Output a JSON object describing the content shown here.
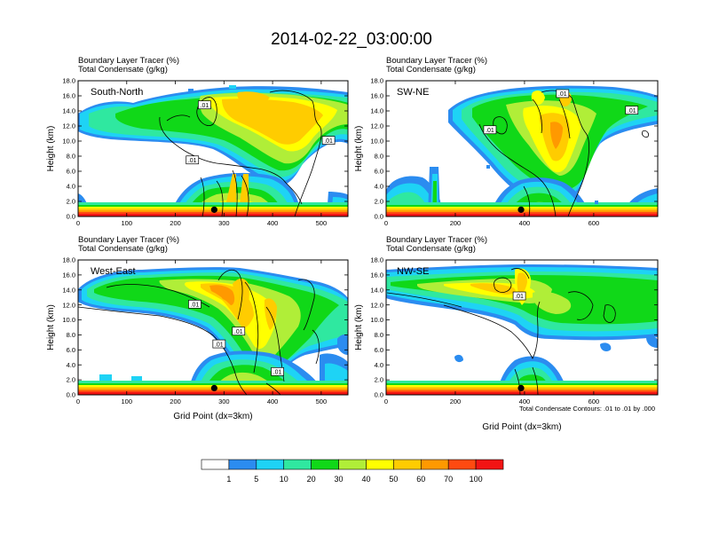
{
  "figure": {
    "title": "2014-02-22_03:00:00",
    "contour_note": "Total Condensate Contours: .01 to .01 by .000",
    "colorbar": {
      "colors": [
        "#ffffff",
        "#2b8cf0",
        "#1ed3f5",
        "#2fe8a0",
        "#10d818",
        "#b0ee38",
        "#ffff00",
        "#ffcc00",
        "#ff9900",
        "#ff4a10",
        "#f21414"
      ],
      "labels": [
        "1",
        "5",
        "10",
        "20",
        "30",
        "40",
        "50",
        "60",
        "70",
        "100"
      ]
    }
  },
  "chart_data": [
    {
      "type": "heatmap",
      "panel_label": "South-North",
      "header": [
        "Boundary Layer Tracer   (%)",
        "Total Condensate   (g/kg)"
      ],
      "ylabel": "Height (km)",
      "xlabel": "",
      "xlim": [
        0,
        555
      ],
      "ylim": [
        0,
        18
      ],
      "xticks": [
        0,
        100,
        200,
        300,
        400,
        500
      ],
      "yticks": [
        "0.0",
        "2.0",
        "4.0",
        "6.0",
        "8.0",
        "10.0",
        "12.0",
        "14.0",
        "16.0",
        "18.0"
      ],
      "contour_labels": [
        {
          "x": 260,
          "y": 14.8,
          "text": ".01"
        },
        {
          "x": 235,
          "y": 7.5,
          "text": ".01"
        },
        {
          "x": 515,
          "y": 10.1,
          "text": ".01"
        }
      ],
      "marker": {
        "x": 280,
        "y": 0.9
      }
    },
    {
      "type": "heatmap",
      "panel_label": "SW-NE",
      "header": [
        "Boundary Layer Tracer   (%)",
        "Total Condensate   (g/kg)"
      ],
      "ylabel": "Height (km)",
      "xlabel": "",
      "xlim": [
        0,
        785
      ],
      "ylim": [
        0,
        18
      ],
      "xticks": [
        0,
        200,
        400,
        600
      ],
      "yticks": [
        "0.0",
        "2.0",
        "4.0",
        "6.0",
        "8.0",
        "10.0",
        "12.0",
        "14.0",
        "16.0",
        "18.0"
      ],
      "contour_labels": [
        {
          "x": 300,
          "y": 11.5,
          "text": ".01"
        },
        {
          "x": 510,
          "y": 16.3,
          "text": ".01"
        },
        {
          "x": 710,
          "y": 14.1,
          "text": ".01"
        }
      ],
      "marker": {
        "x": 390,
        "y": 0.9
      }
    },
    {
      "type": "heatmap",
      "panel_label": "West-East",
      "header": [
        "Boundary Layer Tracer   (%)",
        "Total Condensate   (g/kg)"
      ],
      "ylabel": "Height (km)",
      "xlabel": "Grid Point (dx=3km)",
      "xlim": [
        0,
        555
      ],
      "ylim": [
        0,
        18
      ],
      "xticks": [
        0,
        100,
        200,
        300,
        400,
        500
      ],
      "yticks": [
        "0.0",
        "2.0",
        "4.0",
        "6.0",
        "8.0",
        "10.0",
        "12.0",
        "14.0",
        "16.0",
        "18.0"
      ],
      "contour_labels": [
        {
          "x": 240,
          "y": 12.1,
          "text": ".01"
        },
        {
          "x": 330,
          "y": 8.5,
          "text": ".01"
        },
        {
          "x": 290,
          "y": 6.8,
          "text": ".01"
        },
        {
          "x": 410,
          "y": 3.1,
          "text": ".01"
        }
      ],
      "marker": {
        "x": 280,
        "y": 0.9
      }
    },
    {
      "type": "heatmap",
      "panel_label": "NW-SE",
      "header": [
        "Boundary Layer Tracer   (%)",
        "Total Condensate   (g/kg)"
      ],
      "ylabel": "Height (km)",
      "xlabel": "Grid Point (dx=3km)",
      "xlim": [
        0,
        785
      ],
      "ylim": [
        0,
        18
      ],
      "xticks": [
        0,
        200,
        400,
        600
      ],
      "yticks": [
        "0.0",
        "2.0",
        "4.0",
        "6.0",
        "8.0",
        "10.0",
        "12.0",
        "14.0",
        "16.0",
        "18.0"
      ],
      "contour_labels": [
        {
          "x": 385,
          "y": 13.2,
          "text": ".01"
        }
      ],
      "marker": {
        "x": 390,
        "y": 0.9
      }
    }
  ]
}
